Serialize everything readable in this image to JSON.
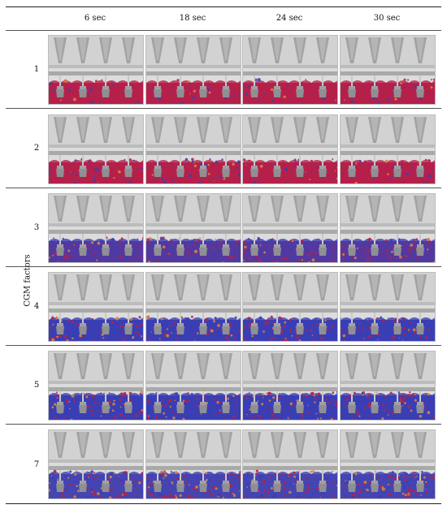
{
  "table": {
    "columns": [
      "6 sec",
      "18 sec",
      "24 sec",
      "30 sec"
    ],
    "rows": [
      "1",
      "2",
      "3",
      "4",
      "5",
      "7"
    ],
    "side_label": "CGM factors"
  },
  "colors": {
    "steel": "#c9c9c9",
    "steel_dark": "#9a9a9a",
    "fluid_red": "#b5204a",
    "fluid_blue": "#3b3fb5",
    "fluid_orange": "#d9823a",
    "rule": "#444444"
  }
}
